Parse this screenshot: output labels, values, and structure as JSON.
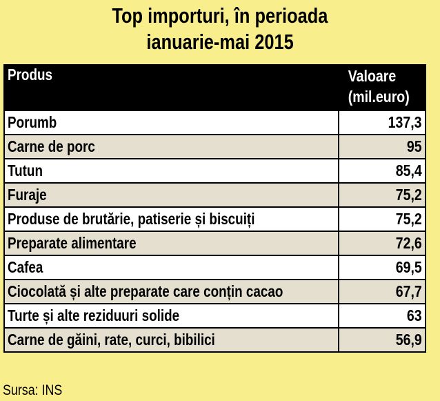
{
  "title": [
    "Top importuri, în perioada",
    "ianuarie-mai 2015"
  ],
  "table": {
    "header": [
      "Produs",
      "Valoare (mil.euro)"
    ],
    "rows": [
      [
        "Porumb",
        "137,3"
      ],
      [
        "Carne de  porc",
        "95"
      ],
      [
        "Tutun",
        "85,4"
      ],
      [
        "Furaje",
        "75,2"
      ],
      [
        "Produse de brutărie, patiserie și biscuiți",
        "75,2"
      ],
      [
        "Preparate alimentare",
        "72,6"
      ],
      [
        "Cafea",
        "69,5"
      ],
      [
        "Ciocolată și alte preparate care conțin cacao",
        "67,7"
      ],
      [
        "Turte și alte reziduuri solide",
        "63"
      ],
      [
        "Carne de găini, rate, curci, bibilici",
        "56,9"
      ]
    ]
  },
  "source": "Sursa: INS"
}
